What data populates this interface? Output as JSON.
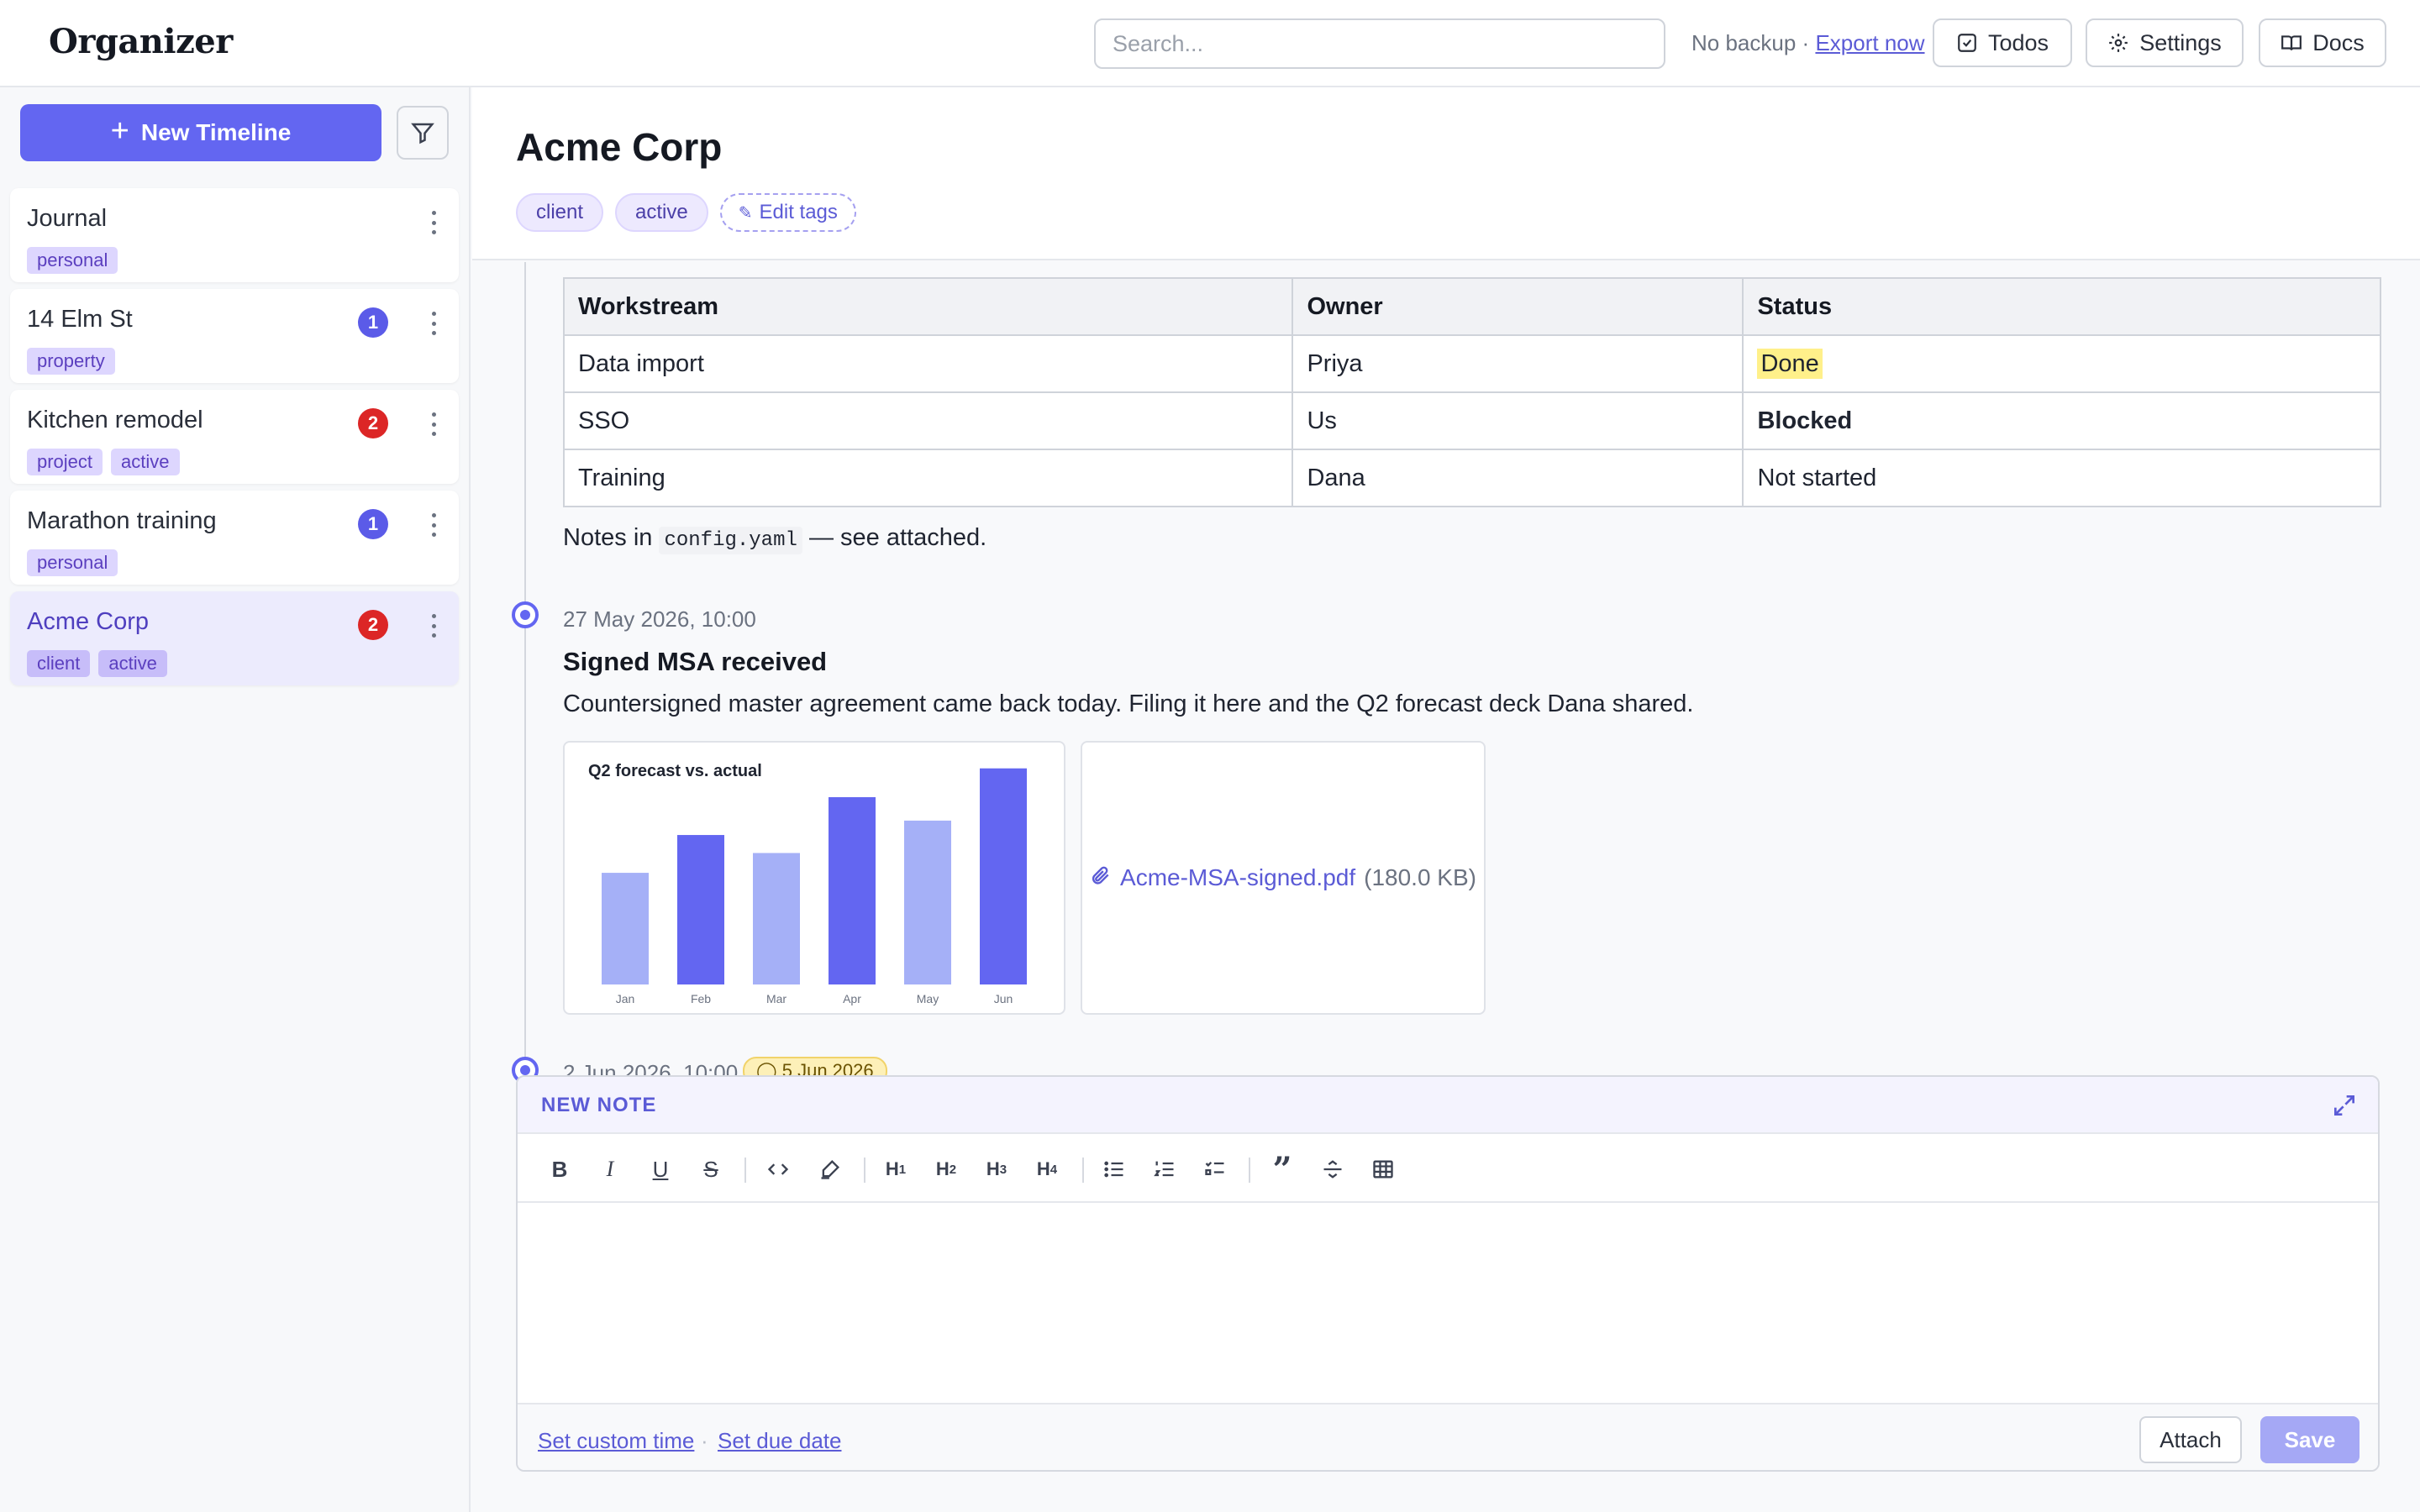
{
  "app": {
    "title": "Organizer"
  },
  "header": {
    "search_placeholder": "Search...",
    "backup_status": "No backup",
    "backup_separator": "·",
    "export_link": "Export now",
    "todos_label": "Todos",
    "settings_label": "Settings",
    "docs_label": "Docs"
  },
  "sidebar": {
    "new_timeline_label": "New Timeline",
    "items": [
      {
        "title": "Journal",
        "tags": [
          "personal"
        ],
        "badge": ""
      },
      {
        "title": "14 Elm St",
        "tags": [
          "property"
        ],
        "badge": "1"
      },
      {
        "title": "Kitchen remodel",
        "tags": [
          "project",
          "active"
        ],
        "badge": "2"
      },
      {
        "title": "Marathon training",
        "tags": [
          "personal"
        ],
        "badge": "1"
      },
      {
        "title": "Acme Corp",
        "tags": [
          "client",
          "active"
        ],
        "badge": "2"
      }
    ]
  },
  "main": {
    "title": "Acme Corp",
    "tags": [
      "client",
      "active"
    ],
    "edit_tags_label": "Edit tags",
    "table": {
      "headers": [
        "Workstream",
        "Owner",
        "Status"
      ],
      "rows": [
        [
          "Data import",
          "Priya",
          "Done"
        ],
        [
          "SSO",
          "Us",
          "Blocked"
        ],
        [
          "Training",
          "Dana",
          "Not started"
        ]
      ]
    },
    "notes_prefix": "Notes in",
    "notes_code": "config.yaml",
    "notes_suffix": "— see attached.",
    "entry": {
      "date": "27 May 2026, 10:00",
      "title": "Signed MSA received",
      "body": "Countersigned master agreement came back today. Filing it here and the Q2 forecast deck Dana shared.",
      "attachment_name": "Acme-MSA-signed.pdf",
      "attachment_size": "(180.0 KB)"
    },
    "peek_entry": {
      "date": "2 Jun 2026, 10:00",
      "due": "5 Jun 2026"
    }
  },
  "chart_data": {
    "type": "bar",
    "title": "Q2 forecast vs. actual",
    "categories": [
      "Jan",
      "Feb",
      "Mar",
      "Apr",
      "May",
      "Jun"
    ],
    "values": [
      62,
      83,
      73,
      104,
      91,
      120
    ],
    "ylim": [
      0,
      125
    ],
    "colors": [
      "#a5b0f7",
      "#6366f1",
      "#a5b0f7",
      "#6366f1",
      "#a5b0f7",
      "#6366f1"
    ],
    "xlabel": "",
    "ylabel": "",
    "grid": false
  },
  "editor": {
    "label": "NEW NOTE",
    "set_time_label": "Set custom time",
    "separator": "·",
    "set_due_label": "Set due date",
    "attach_label": "Attach",
    "save_label": "Save"
  },
  "colors": {
    "accent": "#6366f1",
    "badge_blue": "#5b5be8",
    "badge_red": "#dc2626",
    "highlight": "#fff08a"
  }
}
